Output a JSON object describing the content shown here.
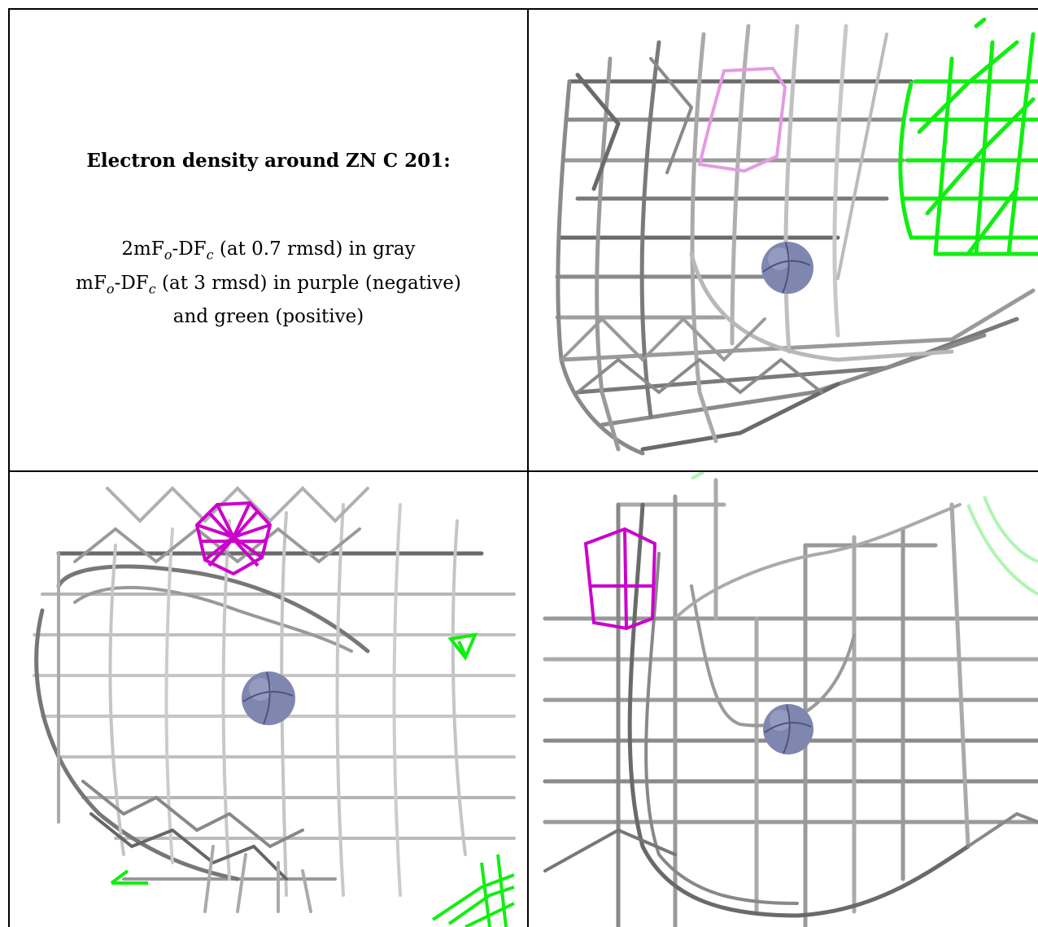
{
  "caption": {
    "title": "Electron density around ZN C 201:",
    "line1": {
      "map_prefix": "2mF",
      "sub_o": "o",
      "map_mid": "-DF",
      "sub_c": "c",
      "rest": " (at 0.7 rmsd) in gray"
    },
    "line2": {
      "map_prefix": "mF",
      "sub_o": "o",
      "map_mid": "-DF",
      "sub_c": "c",
      "rest": " (at 3 rmsd) in purple (negative)"
    },
    "line3": "and green (positive)"
  },
  "colors": {
    "gray_mesh": "#a8a8a8",
    "dark_mesh": "#5a5a5a",
    "negative": "#cc00cc",
    "positive": "#00e000",
    "zinc": "#7f86b0"
  },
  "icons": [
    "zinc-atom-icon",
    "gray-density-mesh",
    "negative-density-mesh",
    "positive-density-mesh"
  ]
}
